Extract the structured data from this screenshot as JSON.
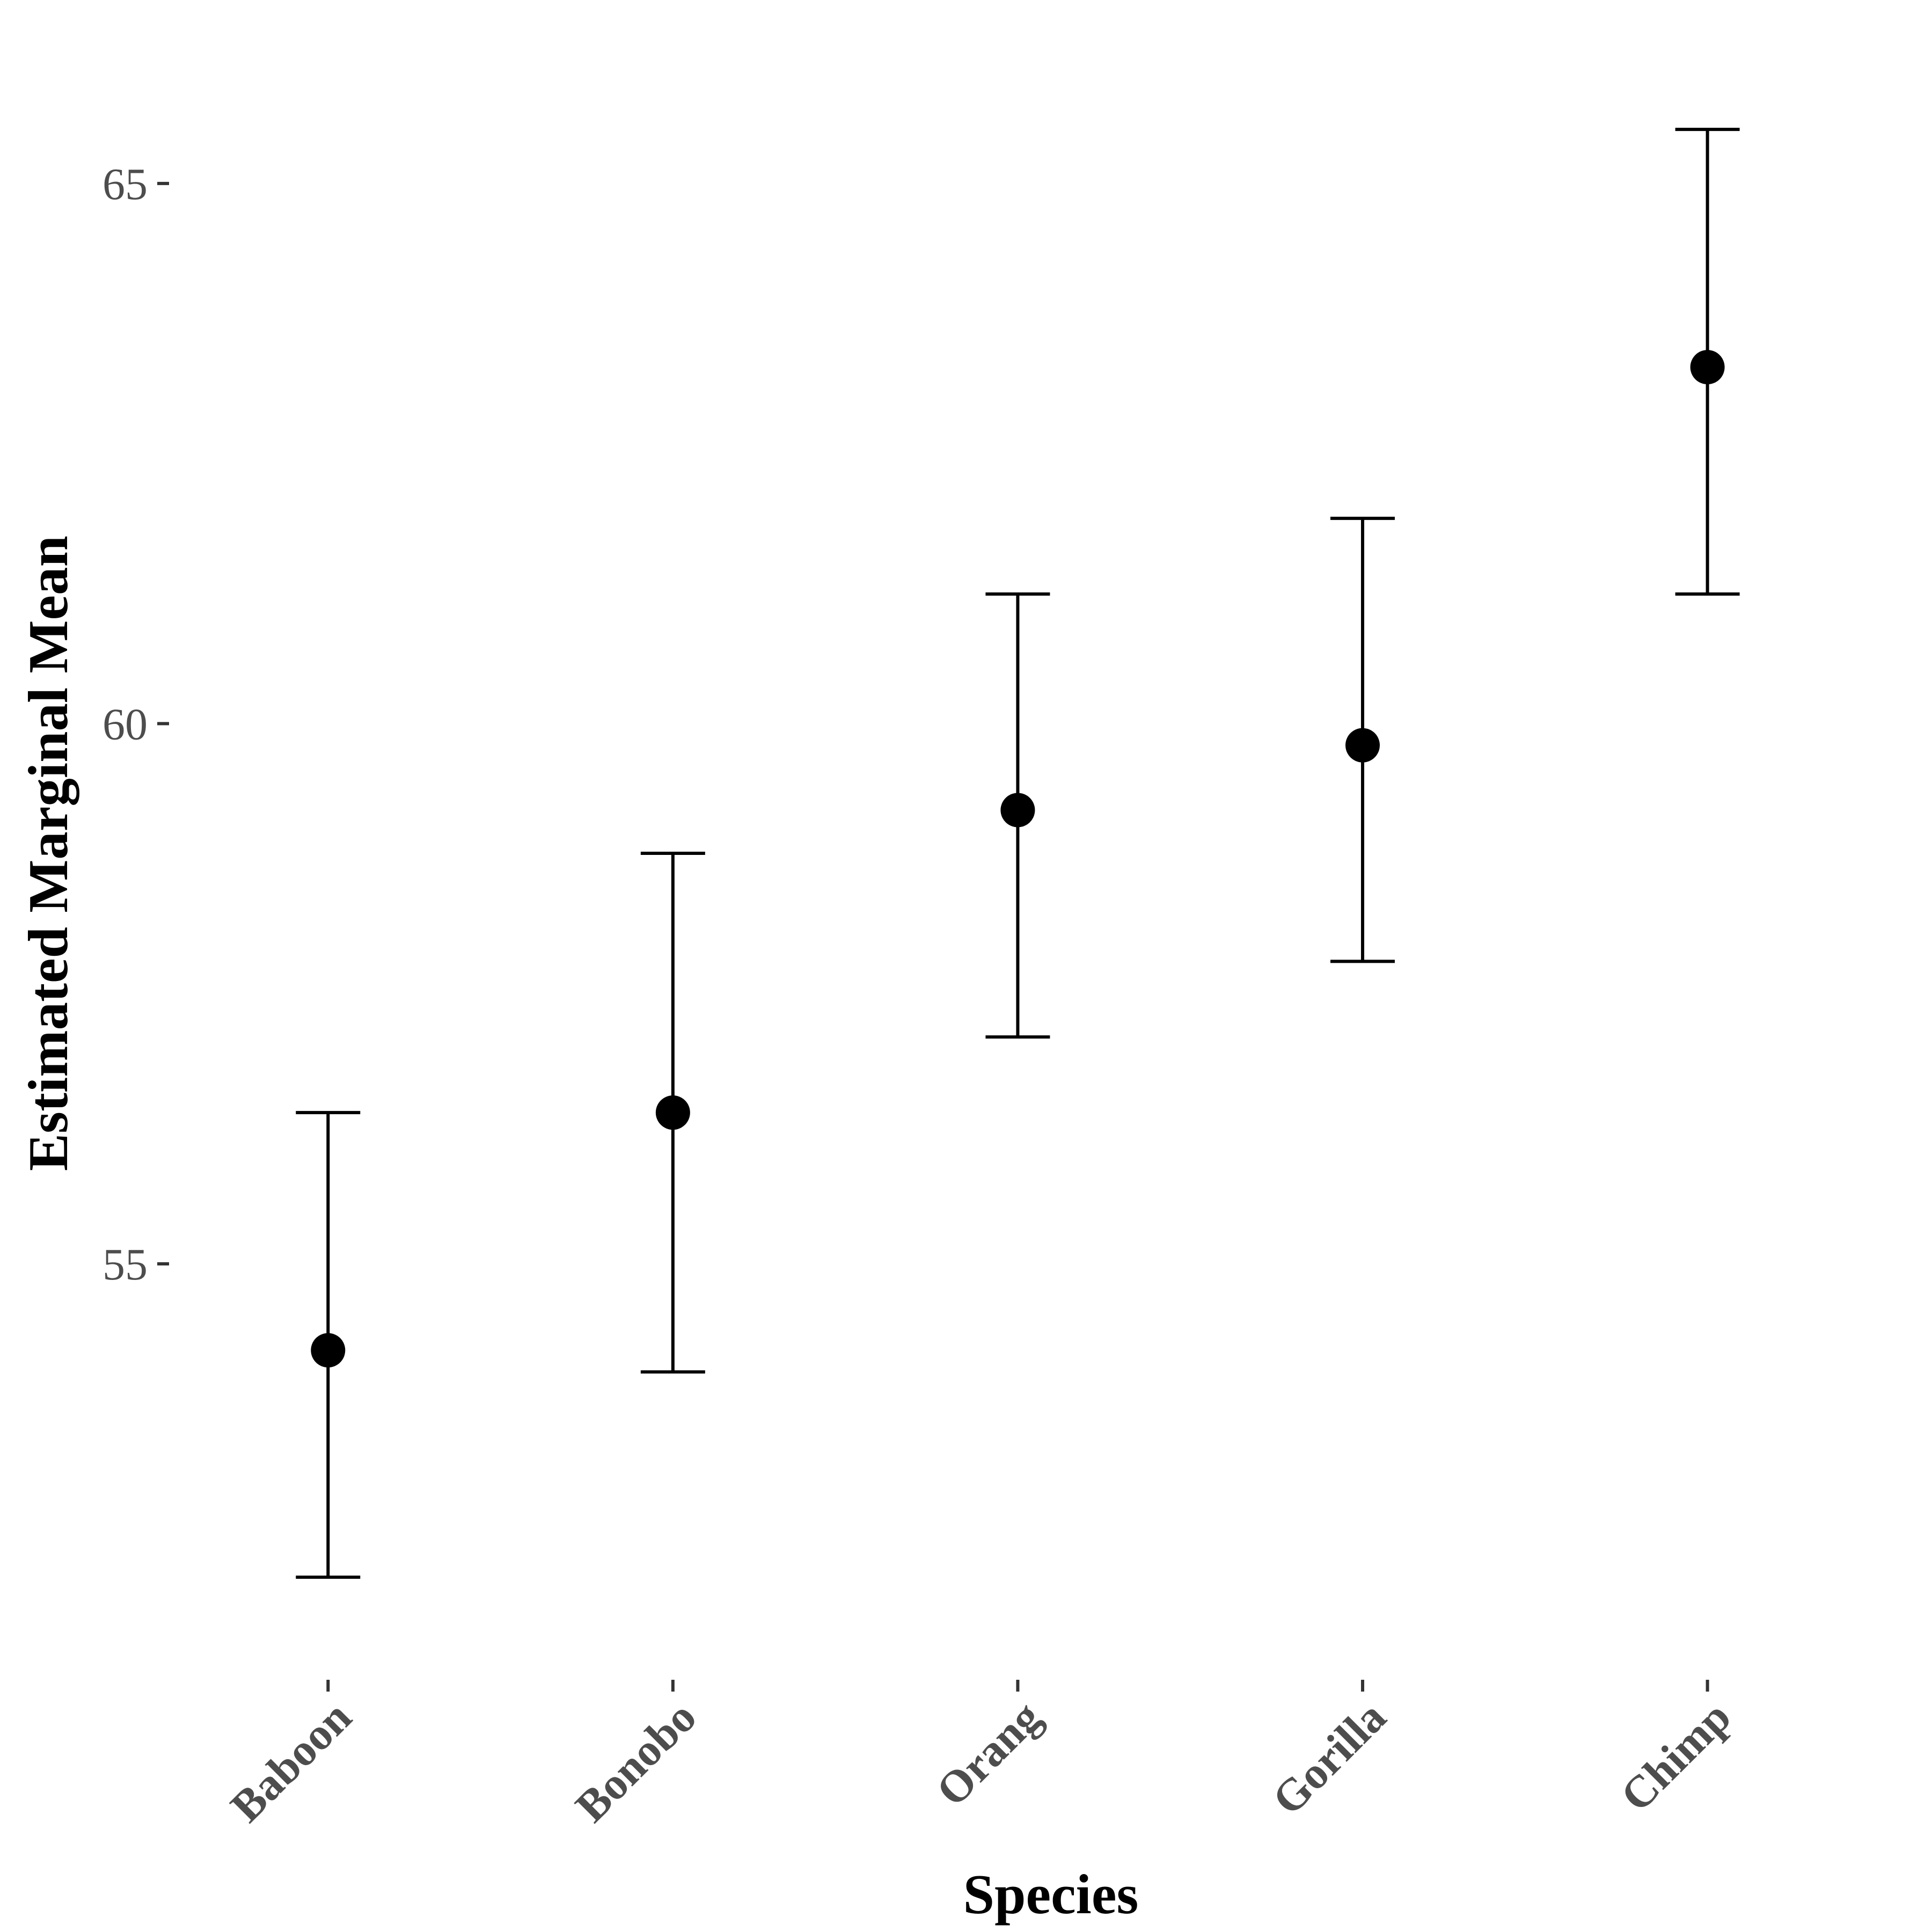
{
  "chart_data": {
    "type": "scatter",
    "xlabel": "Species",
    "ylabel": "Estimated Marginal Mean",
    "categories": [
      "Baboon",
      "Bonobo",
      "Orang",
      "Gorilla",
      "Chimp"
    ],
    "series": [
      {
        "values": [
          54.2,
          56.4,
          59.2,
          59.8,
          63.3
        ],
        "lower": [
          52.1,
          54.0,
          57.1,
          57.8,
          61.2
        ],
        "upper": [
          56.4,
          58.8,
          61.2,
          61.9,
          65.5
        ]
      }
    ],
    "yticks": [
      55,
      60,
      65
    ],
    "ylim": [
      51.2,
      66.4
    ],
    "grid": false,
    "legend": "none",
    "colors": {
      "marks": "#000000",
      "tick_labels": "#4d4d4d",
      "axis_titles": "#000000",
      "background": "#ffffff"
    }
  }
}
